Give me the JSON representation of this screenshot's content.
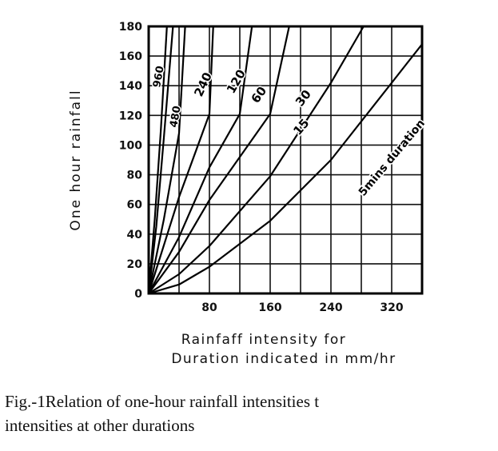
{
  "chart_data": {
    "type": "line",
    "title": "",
    "xlabel_line1": "Rainfaff intensity for",
    "xlabel_line2": "Duration indicated in mm/hr",
    "ylabel": "One hour rainfall",
    "xlim": [
      0,
      360
    ],
    "ylim": [
      0,
      180
    ],
    "x_ticks": [
      80,
      160,
      240,
      320
    ],
    "y_ticks": [
      0,
      20,
      40,
      60,
      80,
      100,
      120,
      140,
      160,
      180
    ],
    "grid": true,
    "series": [
      {
        "name": "960",
        "points": [
          [
            0,
            0
          ],
          [
            8,
            50
          ],
          [
            16,
            110
          ],
          [
            24,
            180
          ]
        ]
      },
      {
        "name": "480",
        "points": [
          [
            0,
            0
          ],
          [
            10,
            45
          ],
          [
            20,
            105
          ],
          [
            32,
            180
          ]
        ]
      },
      {
        "name": "240",
        "points": [
          [
            0,
            0
          ],
          [
            20,
            50
          ],
          [
            40,
            108
          ],
          [
            48,
            180
          ]
        ]
      },
      {
        "name": "120",
        "points": [
          [
            0,
            0
          ],
          [
            40,
            65
          ],
          [
            80,
            121
          ],
          [
            85,
            180
          ]
        ]
      },
      {
        "name": "60",
        "points": [
          [
            0,
            0
          ],
          [
            40,
            38
          ],
          [
            80,
            85
          ],
          [
            120,
            121
          ],
          [
            136,
            180
          ]
        ]
      },
      {
        "name": "30",
        "points": [
          [
            0,
            0
          ],
          [
            40,
            28
          ],
          [
            80,
            63
          ],
          [
            160,
            121
          ],
          [
            185,
            180
          ]
        ]
      },
      {
        "name": "15",
        "points": [
          [
            0,
            0
          ],
          [
            40,
            13
          ],
          [
            80,
            32
          ],
          [
            160,
            79
          ],
          [
            240,
            142
          ],
          [
            283,
            180
          ]
        ]
      },
      {
        "name": "5mins duration",
        "points": [
          [
            0,
            0
          ],
          [
            40,
            6
          ],
          [
            80,
            18
          ],
          [
            160,
            49
          ],
          [
            240,
            90
          ],
          [
            320,
            142
          ],
          [
            360,
            168
          ]
        ]
      }
    ]
  },
  "caption_line1": "Fig.-1Relation of one-hour rainfall intensities t",
  "caption_line2": "intensities at other durations"
}
